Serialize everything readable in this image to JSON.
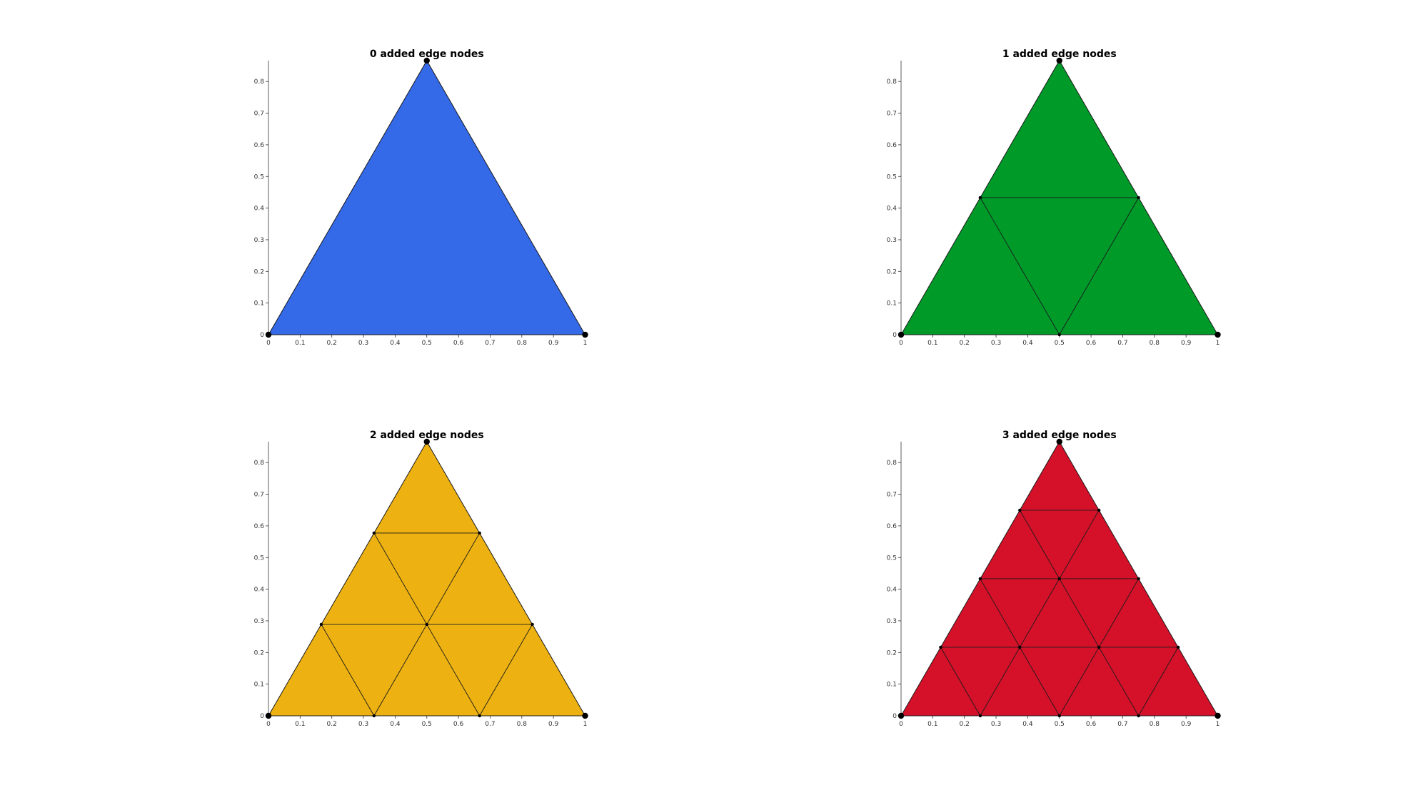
{
  "figure": {
    "panels": [
      {
        "title": "0 added edge nodes",
        "added_nodes": 0,
        "fill_color": "#3469E8"
      },
      {
        "title": "1 added edge nodes",
        "added_nodes": 1,
        "fill_color": "#009A29"
      },
      {
        "title": "2 added edge nodes",
        "added_nodes": 2,
        "fill_color": "#EDB212"
      },
      {
        "title": "3 added edge nodes",
        "added_nodes": 3,
        "fill_color": "#D41129"
      }
    ],
    "axes": {
      "xlim": [
        0,
        1
      ],
      "ylim": [
        0,
        0.866
      ],
      "x_ticks": [
        "0",
        "0.1",
        "0.2",
        "0.3",
        "0.4",
        "0.5",
        "0.6",
        "0.7",
        "0.8",
        "0.9",
        "1"
      ],
      "y_ticks": [
        "0",
        "0.1",
        "0.2",
        "0.3",
        "0.4",
        "0.5",
        "0.6",
        "0.7",
        "0.8"
      ]
    },
    "triangle_vertices": [
      [
        0,
        0
      ],
      [
        1,
        0
      ],
      [
        0.5,
        0.866
      ]
    ],
    "colors": {
      "edge": "#1a1a1a",
      "node": "#000000",
      "axis": "#333333"
    }
  }
}
